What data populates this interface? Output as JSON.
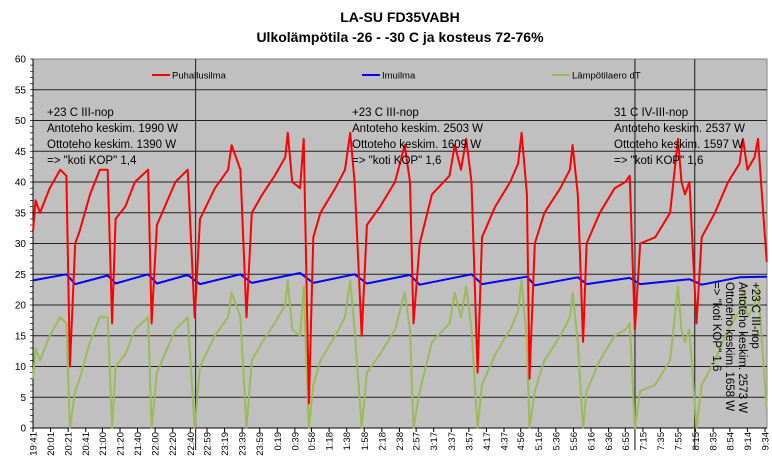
{
  "chart_data": {
    "type": "line",
    "title": "LA-SU FD35VABH",
    "subtitle": "Ulkolämpötila -26 - -30 C ja kosteus 72-76%",
    "xlabel": "",
    "ylabel": "",
    "ylim": [
      0,
      60
    ],
    "yticks": [
      0,
      5,
      10,
      15,
      20,
      25,
      30,
      35,
      40,
      45,
      50,
      55,
      60
    ],
    "grid": "horizontal",
    "legend_position": "top",
    "plot_background": "#c0c0c0",
    "xtick_labels": [
      "19:41",
      "20:01",
      "20:21",
      "20:41",
      "21:00",
      "21:20",
      "21:40",
      "22:00",
      "22:20",
      "22:40",
      "22:59",
      "23:19",
      "23:39",
      "23:59",
      "0:19",
      "0:39",
      "0:58",
      "1:18",
      "1:38",
      "1:58",
      "2:18",
      "2:38",
      "2:57",
      "3:17",
      "3:37",
      "3:57",
      "4:17",
      "4:37",
      "4:56",
      "5:16",
      "5:36",
      "5:56",
      "6:16",
      "6:36",
      "6:55",
      "7:15",
      "7:35",
      "7:55",
      "8:15",
      "8:35",
      "8:54",
      "9:14",
      "9:34"
    ],
    "x": [
      "19:41",
      "19:44",
      "19:49",
      "20:00",
      "20:12",
      "20:19",
      "20:23",
      "20:29",
      "20:34",
      "20:46",
      "20:57",
      "21:06",
      "21:11",
      "21:15",
      "21:26",
      "21:37",
      "21:52",
      "21:56",
      "22:02",
      "22:11",
      "22:23",
      "22:37",
      "22:45",
      "22:51",
      "23:08",
      "23:23",
      "23:27",
      "23:37",
      "23:44",
      "23:50",
      "0:02",
      "0:16",
      "0:28",
      "0:31",
      "0:36",
      "0:45",
      "0:49",
      "0:55",
      "1:00",
      "1:08",
      "1:25",
      "1:36",
      "1:42",
      "1:47",
      "1:55",
      "2:01",
      "2:16",
      "2:33",
      "2:44",
      "2:50",
      "2:54",
      "3:01",
      "3:15",
      "3:35",
      "3:41",
      "3:48",
      "3:54",
      "4:00",
      "4:07",
      "4:12",
      "4:27",
      "4:44",
      "4:53",
      "4:57",
      "5:03",
      "5:06",
      "5:12",
      "5:23",
      "5:41",
      "5:52",
      "5:55",
      "6:01",
      "6:07",
      "6:11",
      "6:26",
      "6:43",
      "6:55",
      "7:00",
      "7:06",
      "7:12",
      "7:29",
      "7:46",
      "7:55",
      "7:59",
      "8:03",
      "8:08",
      "8:16",
      "8:22",
      "8:37",
      "8:52",
      "9:05",
      "9:09",
      "9:14",
      "9:22",
      "9:26",
      "9:32",
      "9:36"
    ],
    "series": [
      {
        "name": "Puhallusilma",
        "color": "#ff0000",
        "values": [
          32,
          37,
          35,
          39,
          42,
          41,
          10,
          30,
          32,
          38,
          42,
          42,
          17,
          34,
          36,
          40,
          42,
          17,
          33,
          36,
          40,
          42,
          18,
          34,
          39,
          42,
          46,
          42,
          18,
          35,
          38,
          41,
          44,
          48,
          40,
          39,
          47,
          4,
          31,
          35,
          39,
          42,
          48,
          40,
          15,
          33,
          36,
          40,
          46,
          40,
          17,
          30,
          38,
          41,
          46,
          42,
          47,
          40,
          9,
          31,
          36,
          40,
          43,
          48,
          38,
          8,
          30,
          35,
          39,
          42,
          46,
          38,
          14,
          30,
          35,
          39,
          40,
          41,
          16,
          30,
          31,
          35,
          47,
          40,
          38,
          40,
          17,
          31,
          35,
          40,
          43,
          47,
          42,
          44,
          47,
          35,
          27
        ]
      },
      {
        "name": "Imuilma",
        "color": "#0000ff",
        "x": [
          "19:41",
          "20:19",
          "20:29",
          "21:06",
          "21:15",
          "21:52",
          "22:02",
          "22:37",
          "22:51",
          "23:37",
          "23:50",
          "0:45",
          "1:00",
          "1:47",
          "2:01",
          "2:50",
          "3:01",
          "4:00",
          "4:12",
          "5:03",
          "5:12",
          "6:01",
          "6:11",
          "7:00",
          "7:12",
          "8:08",
          "8:22",
          "9:05",
          "9:36"
        ],
        "values": [
          24,
          25,
          23.4,
          24.8,
          23.5,
          25,
          23.5,
          24.9,
          23.4,
          25,
          23.6,
          25.2,
          23.6,
          25,
          23.5,
          24.9,
          23.3,
          25,
          23.4,
          24.6,
          23.2,
          24.5,
          23.4,
          24.4,
          23.4,
          24.2,
          23.3,
          24.5,
          24.6
        ]
      },
      {
        "name": "Lämpötilaero dT",
        "color": "#9bbb59",
        "values": [
          8,
          13,
          11,
          15,
          18,
          17,
          0,
          6,
          8,
          14,
          18,
          18,
          0,
          10,
          12,
          16,
          18,
          0,
          9,
          12,
          16,
          18,
          0,
          10,
          15,
          18,
          22,
          18,
          0,
          11,
          14,
          17,
          20,
          24,
          16,
          15,
          23,
          0,
          7,
          11,
          15,
          18,
          24,
          16,
          0,
          9,
          12,
          16,
          22,
          16,
          0,
          6,
          14,
          17,
          22,
          18,
          23,
          16,
          0,
          7,
          12,
          16,
          19,
          24,
          14,
          0,
          6,
          11,
          15,
          18,
          22,
          14,
          0,
          6,
          11,
          15,
          16,
          17,
          0,
          6,
          7,
          11,
          23,
          16,
          14,
          16,
          0,
          7,
          11,
          16,
          19,
          23,
          18,
          20,
          23,
          11,
          3
        ]
      }
    ],
    "separators": [
      "22:46",
      "7:06",
      "8:14"
    ],
    "annotations": [
      {
        "lines": [
          "+23 C III-nop",
          "Antoteho keskim. 1990 W",
          "Ottoteho keskim. 1390 W",
          "=> \"koti KOP\" 1,4"
        ]
      },
      {
        "lines": [
          "+23 C III-nop",
          "Antoteho keskim. 2503 W",
          "Ottoteho keskim. 1609 W",
          "=> \"koti KOP\" 1,6"
        ]
      },
      {
        "lines": [
          "31 C IV-III-nop",
          "Antoteho keskim. 2537 W",
          "Ottoteho keskim. 1597 W",
          "=> \"koti KOP\" 1,6"
        ]
      },
      {
        "orientation": "vertical",
        "lines": [
          "+23 C III-nop",
          "Antoteho keskim. 2573 W",
          "Ottoteho keskim. 1658 W",
          "=> \"koti KOP\" 1,6"
        ]
      }
    ]
  }
}
